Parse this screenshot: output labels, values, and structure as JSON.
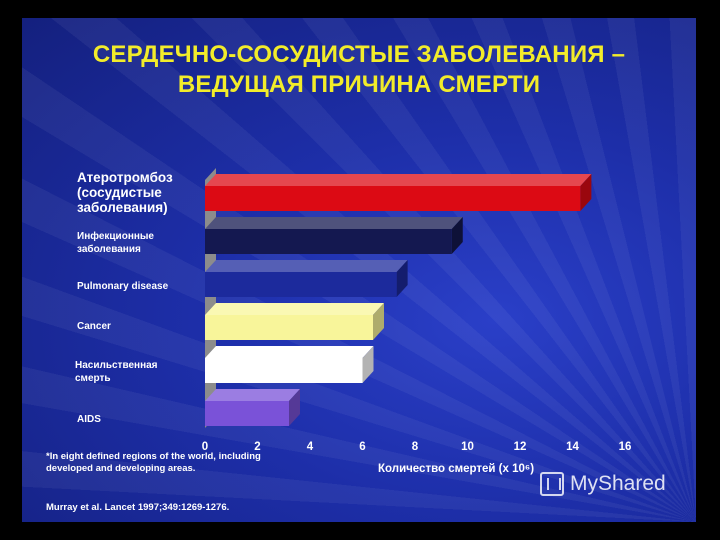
{
  "title": {
    "line1": "СЕРДЕЧНО-СОСУДИСТЫЕ ЗАБОЛЕВАНИЯ –",
    "line2": "ВЕДУЩАЯ ПРИЧИНА СМЕРТИ"
  },
  "chart_data": {
    "type": "bar",
    "orientation": "horizontal",
    "categories": [
      [
        "Атеротромбоз",
        "(сосудистые",
        "заболевания)"
      ],
      [
        "Инфекционные",
        "заболевания"
      ],
      [
        "Pulmonary disease"
      ],
      [
        "Cancer"
      ],
      [
        "Насильственная",
        "смерть"
      ],
      [
        "AIDS"
      ]
    ],
    "values": [
      14.3,
      9.4,
      7.3,
      6.4,
      6.0,
      3.2
    ],
    "colors": [
      "#dc0a14",
      "#141850",
      "#1c2a9c",
      "#f8f59a",
      "#ffffff",
      "#7a52d8"
    ],
    "xlim": [
      0,
      16
    ],
    "xticks": [
      "0",
      "2",
      "4",
      "6",
      "8",
      "10",
      "12",
      "14",
      "16"
    ],
    "xlabel": "Количество смертей (x 10⁶)",
    "ylabel": ""
  },
  "footnote": [
    "*In eight defined regions of the world, including",
    "developed and developing areas."
  ],
  "citation": "Murray et al. Lancet 1997;349:1269-1276.",
  "watermark": "MyShared"
}
